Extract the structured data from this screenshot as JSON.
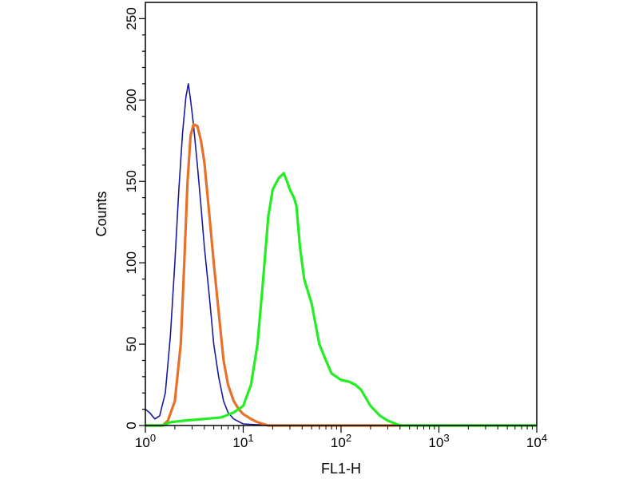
{
  "chart_data": {
    "type": "line",
    "xlabel": "FL1-H",
    "ylabel": "Counts",
    "x_scale": "log",
    "xlim": [
      1,
      10000
    ],
    "ylim": [
      0,
      260
    ],
    "grid": false,
    "legend": "none",
    "y_ticks": [
      {
        "value": 0,
        "label": "0"
      },
      {
        "value": 50,
        "label": "50"
      },
      {
        "value": 100,
        "label": "100"
      },
      {
        "value": 150,
        "label": "150"
      },
      {
        "value": 200,
        "label": "200"
      },
      {
        "value": 250,
        "label": "250"
      }
    ],
    "x_ticks": [
      {
        "value": 1,
        "base": "10",
        "exp": "0"
      },
      {
        "value": 10,
        "base": "10",
        "exp": "1"
      },
      {
        "value": 100,
        "base": "10",
        "exp": "2"
      },
      {
        "value": 1000,
        "base": "10",
        "exp": "3"
      },
      {
        "value": 10000,
        "base": "10",
        "exp": "4"
      }
    ],
    "series": [
      {
        "color": "#1a1aa0",
        "points": [
          [
            1,
            10
          ],
          [
            1.1,
            8
          ],
          [
            1.25,
            4
          ],
          [
            1.4,
            6
          ],
          [
            1.6,
            20
          ],
          [
            1.8,
            55
          ],
          [
            2.0,
            100
          ],
          [
            2.2,
            145
          ],
          [
            2.4,
            180
          ],
          [
            2.6,
            202
          ],
          [
            2.75,
            210
          ],
          [
            2.9,
            200
          ],
          [
            3.1,
            185
          ],
          [
            3.4,
            160
          ],
          [
            3.7,
            135
          ],
          [
            4.0,
            110
          ],
          [
            4.5,
            80
          ],
          [
            5.0,
            50
          ],
          [
            5.6,
            30
          ],
          [
            6.3,
            15
          ],
          [
            7.0,
            8
          ],
          [
            8.0,
            4
          ],
          [
            10,
            1
          ],
          [
            20,
            0
          ],
          [
            10000,
            0
          ]
        ]
      },
      {
        "color": "#e8712a",
        "points": [
          [
            1,
            0
          ],
          [
            1.5,
            0
          ],
          [
            1.7,
            3
          ],
          [
            2.0,
            15
          ],
          [
            2.3,
            50
          ],
          [
            2.5,
            100
          ],
          [
            2.7,
            150
          ],
          [
            2.9,
            178
          ],
          [
            3.1,
            185
          ],
          [
            3.4,
            184
          ],
          [
            3.7,
            175
          ],
          [
            4.0,
            162
          ],
          [
            4.5,
            130
          ],
          [
            5.0,
            100
          ],
          [
            5.6,
            70
          ],
          [
            6.3,
            40
          ],
          [
            7.0,
            25
          ],
          [
            8.0,
            15
          ],
          [
            9.0,
            10
          ],
          [
            10,
            7
          ],
          [
            12,
            4
          ],
          [
            14,
            2
          ],
          [
            18,
            0
          ],
          [
            10000,
            0
          ]
        ]
      },
      {
        "color": "#22ee22",
        "points": [
          [
            1,
            0
          ],
          [
            1.5,
            0
          ],
          [
            1.8,
            2
          ],
          [
            2.5,
            3
          ],
          [
            4,
            4
          ],
          [
            6,
            5
          ],
          [
            8,
            8
          ],
          [
            10,
            12
          ],
          [
            12,
            25
          ],
          [
            14,
            50
          ],
          [
            16,
            90
          ],
          [
            18,
            128
          ],
          [
            20,
            145
          ],
          [
            23,
            152
          ],
          [
            26,
            155
          ],
          [
            28,
            150
          ],
          [
            30,
            145
          ],
          [
            33,
            140
          ],
          [
            35,
            135
          ],
          [
            38,
            110
          ],
          [
            42,
            90
          ],
          [
            50,
            75
          ],
          [
            60,
            50
          ],
          [
            70,
            40
          ],
          [
            80,
            32
          ],
          [
            100,
            28
          ],
          [
            120,
            27
          ],
          [
            140,
            25
          ],
          [
            160,
            22
          ],
          [
            200,
            12
          ],
          [
            250,
            6
          ],
          [
            300,
            3
          ],
          [
            400,
            0
          ],
          [
            10000,
            0
          ]
        ]
      }
    ]
  }
}
